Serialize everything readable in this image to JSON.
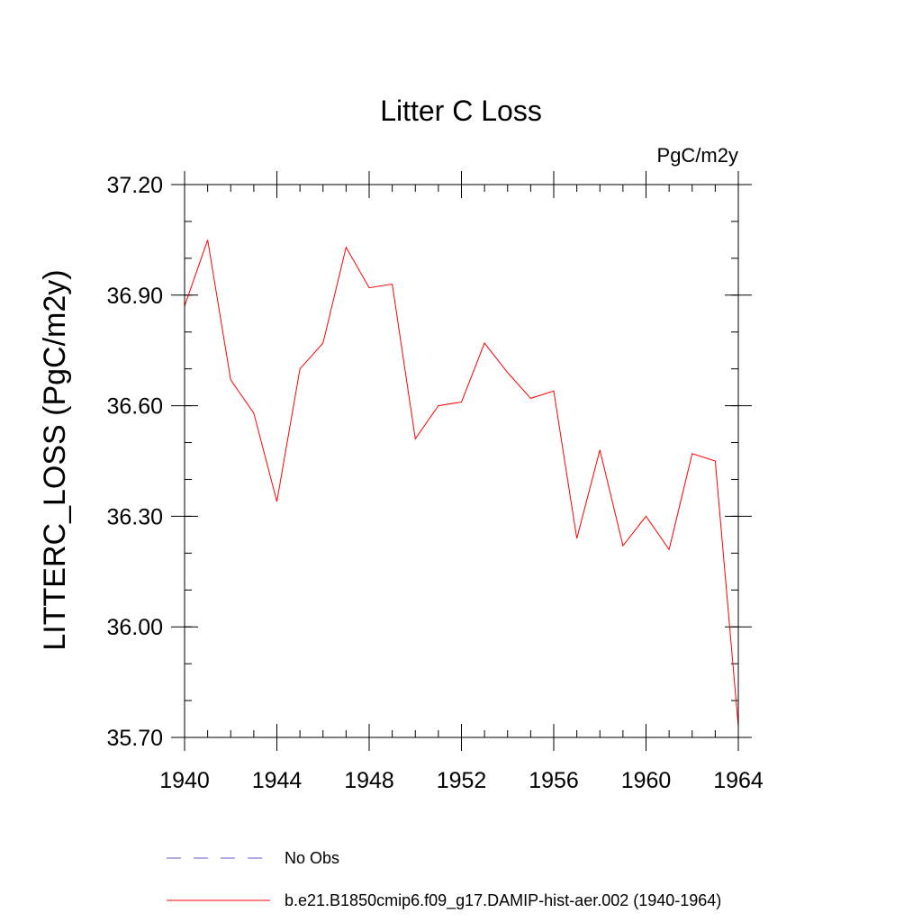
{
  "chart_data": {
    "type": "line",
    "title": "Litter C Loss",
    "units": "PgC/m2y",
    "xlabel": "",
    "ylabel": "LITTERC_LOSS  (PgC/m2y)",
    "xlim": [
      1940,
      1964
    ],
    "ylim": [
      35.7,
      37.2
    ],
    "x_ticks": [
      "1940",
      "1944",
      "1948",
      "1952",
      "1956",
      "1960",
      "1964"
    ],
    "y_ticks": [
      "35.70",
      "36.00",
      "36.30",
      "36.60",
      "36.90",
      "37.20"
    ],
    "x_minor_step": 1,
    "y_minor_step": 0.1,
    "grid": false,
    "legend_position": "bottom",
    "x": [
      1940,
      1941,
      1942,
      1943,
      1944,
      1945,
      1946,
      1947,
      1948,
      1949,
      1950,
      1951,
      1952,
      1953,
      1954,
      1955,
      1956,
      1957,
      1958,
      1959,
      1960,
      1961,
      1962,
      1963,
      1964
    ],
    "series": [
      {
        "name": "b.e21.B1850cmip6.f09_g17.DAMIP-hist-aer.002 (1940-1964)",
        "color": "#ff0000",
        "dash": "solid",
        "values": [
          36.87,
          37.05,
          36.67,
          36.58,
          36.34,
          36.7,
          36.77,
          37.03,
          36.92,
          36.93,
          36.51,
          36.6,
          36.61,
          36.77,
          36.69,
          36.62,
          36.64,
          36.24,
          36.48,
          36.22,
          36.3,
          36.21,
          36.47,
          36.45,
          35.73
        ]
      }
    ],
    "legend": [
      {
        "label": "No Obs",
        "color": "#6a5acd",
        "dash": "dashed"
      },
      {
        "label": "b.e21.B1850cmip6.f09_g17.DAMIP-hist-aer.002 (1940-1964)",
        "color": "#ff0000",
        "dash": "solid"
      }
    ]
  }
}
